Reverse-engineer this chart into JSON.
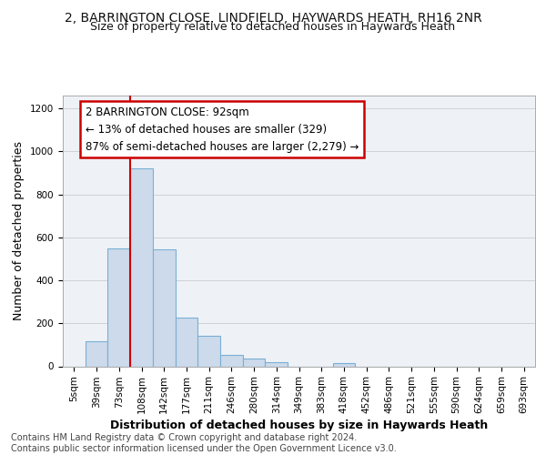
{
  "title_line1": "2, BARRINGTON CLOSE, LINDFIELD, HAYWARDS HEATH, RH16 2NR",
  "title_line2": "Size of property relative to detached houses in Haywards Heath",
  "xlabel": "Distribution of detached houses by size in Haywards Heath",
  "ylabel": "Number of detached properties",
  "footnote": "Contains HM Land Registry data © Crown copyright and database right 2024.\nContains public sector information licensed under the Open Government Licence v3.0.",
  "bar_labels": [
    "5sqm",
    "39sqm",
    "73sqm",
    "108sqm",
    "142sqm",
    "177sqm",
    "211sqm",
    "246sqm",
    "280sqm",
    "314sqm",
    "349sqm",
    "383sqm",
    "418sqm",
    "452sqm",
    "486sqm",
    "521sqm",
    "555sqm",
    "590sqm",
    "624sqm",
    "659sqm",
    "693sqm"
  ],
  "bar_values": [
    0,
    115,
    550,
    920,
    545,
    225,
    140,
    55,
    35,
    20,
    0,
    0,
    15,
    0,
    0,
    0,
    0,
    0,
    0,
    0,
    0
  ],
  "bar_color": "#ccdaeb",
  "bar_edge_color": "#7aafd4",
  "annotation_box_text": "2 BARRINGTON CLOSE: 92sqm\n← 13% of detached houses are smaller (329)\n87% of semi-detached houses are larger (2,279) →",
  "annotation_box_color": "#ffffff",
  "annotation_box_edge_color": "#cc0000",
  "vline_x": 2.5,
  "vline_color": "#cc0000",
  "ylim": [
    0,
    1260
  ],
  "yticks": [
    0,
    200,
    400,
    600,
    800,
    1000,
    1200
  ],
  "grid_color": "#cccccc",
  "bg_color": "#f0f4f8",
  "plot_bg_color": "#eef2f7",
  "title_fontsize": 10,
  "subtitle_fontsize": 9,
  "axis_label_fontsize": 9,
  "tick_fontsize": 7.5,
  "annotation_fontsize": 8.5,
  "footnote_fontsize": 7
}
